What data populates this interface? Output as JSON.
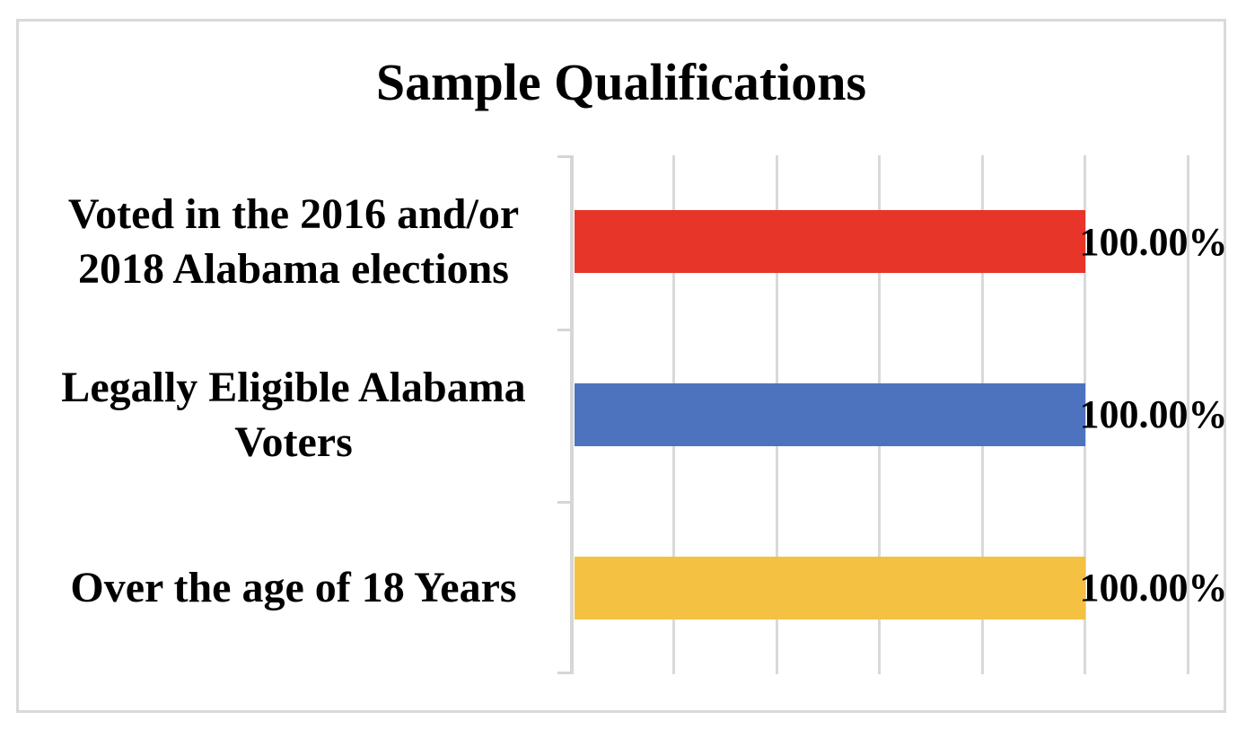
{
  "chart_data": {
    "type": "bar",
    "orientation": "horizontal",
    "title": "Sample Qualifications",
    "categories": [
      "Voted in the 2016 and/or 2018 Alabama elections",
      "Legally Eligible Alabama Voters",
      "Over the age of 18 Years"
    ],
    "values": [
      100.0,
      100.0,
      100.0
    ],
    "value_labels": [
      "100.00%",
      "100.00%",
      "100.00%"
    ],
    "series_colors": [
      "#e8352a",
      "#4d73bf",
      "#f5c142"
    ],
    "xlabel": "",
    "ylabel": "",
    "xlim": [
      0,
      120
    ],
    "x_major_step": 20,
    "grid": "vertical-major",
    "gridline_color": "#d9d9d9",
    "axis_color": "#d6d6d6",
    "legend": "none",
    "data_label_position": "outside-end",
    "tick_labels_visible": false
  }
}
